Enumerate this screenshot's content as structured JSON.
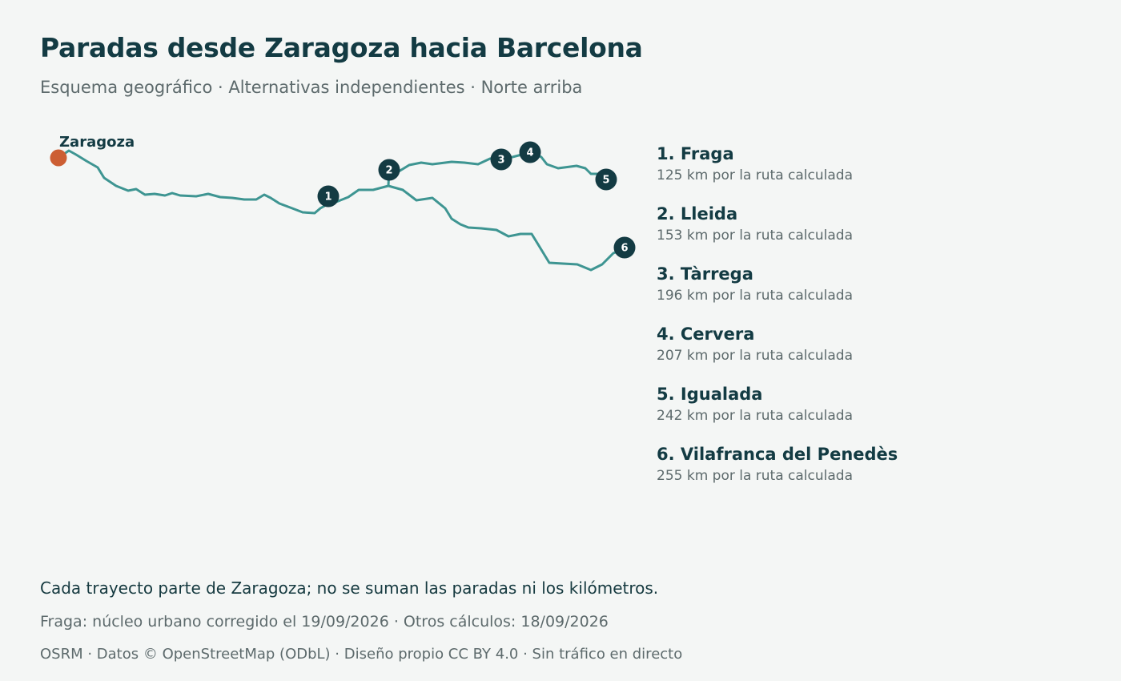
{
  "header": {
    "title": "Paradas desde Zaragoza hacia Barcelona",
    "subtitle": "Esquema geográfico · Alternativas independientes · Norte arriba"
  },
  "map": {
    "origin": "Zaragoza",
    "route_color": "#3e9592",
    "origin_color": "#cc5e33",
    "marker_color": "#133b43"
  },
  "stops": [
    {
      "number": "1",
      "name": "1. Fraga",
      "distance": "125 km por la ruta calculada"
    },
    {
      "number": "2",
      "name": "2. Lleida",
      "distance": "153 km por la ruta calculada"
    },
    {
      "number": "3",
      "name": "3. Tàrrega",
      "distance": "196 km por la ruta calculada"
    },
    {
      "number": "4",
      "name": "4. Cervera",
      "distance": "207 km por la ruta calculada"
    },
    {
      "number": "5",
      "name": "5. Igualada",
      "distance": "242 km por la ruta calculada"
    },
    {
      "number": "6",
      "name": "6. Vilafranca del Penedès",
      "distance": "255 km por la ruta calculada"
    }
  ],
  "footer": {
    "note": "Cada trayecto parte de Zaragoza; no se suman las paradas ni los kilómetros.",
    "update": "Fraga: núcleo urbano corregido el 19/09/2026 · Otros cálculos: 18/09/2026",
    "credits": "OSRM · Datos © OpenStreetMap (ODbL) · Diseño propio CC BY 4.0 · Sin tráfico en directo"
  }
}
